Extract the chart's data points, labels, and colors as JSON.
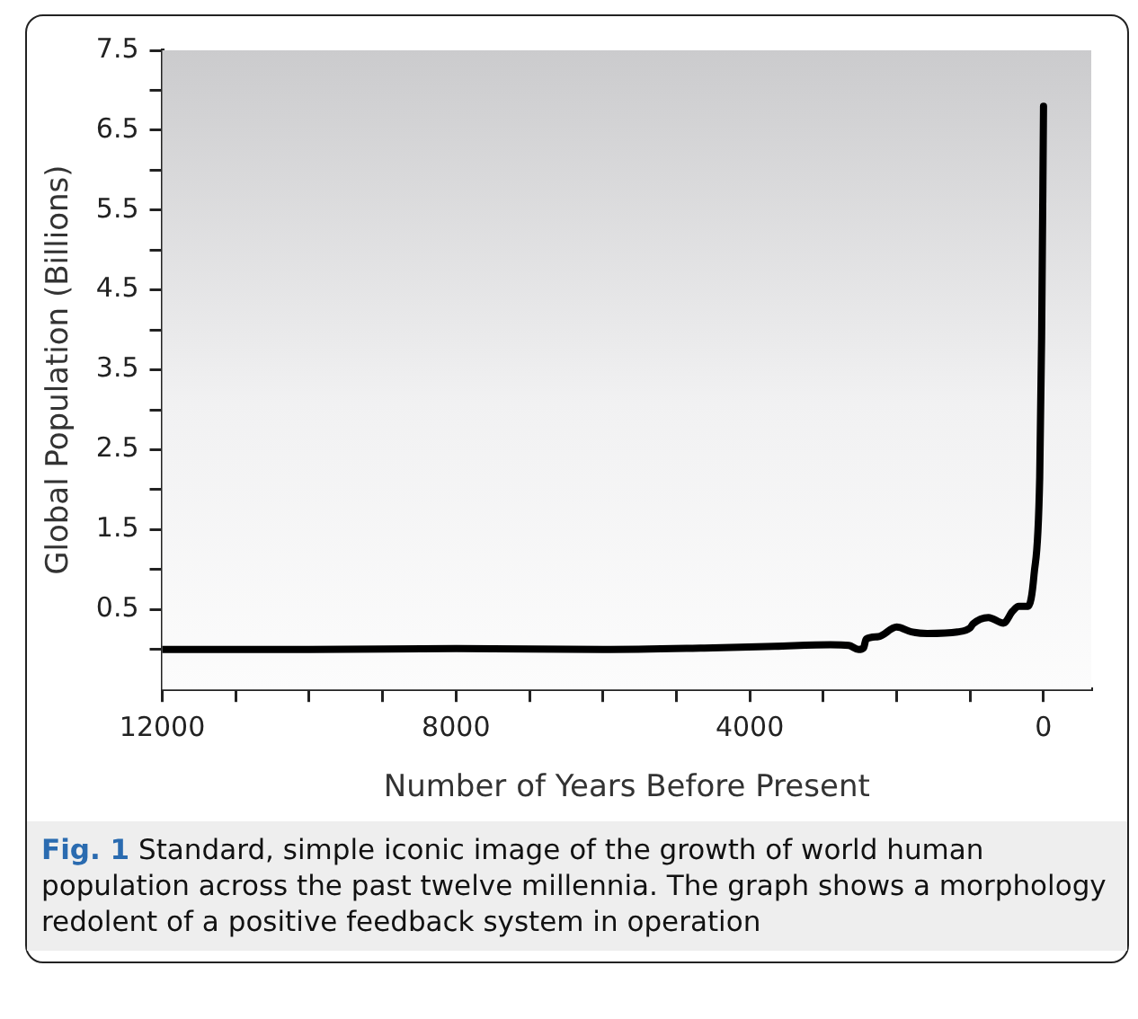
{
  "chart_data": {
    "type": "line",
    "xlabel": "Number of Years Before Present",
    "ylabel": "Global Population (Billions)",
    "x": [
      12000,
      10000,
      8000,
      6000,
      4500,
      3662,
      2900,
      2650,
      2520,
      2450,
      2416,
      2250,
      2000,
      1800,
      1584,
      1170,
      1000,
      960,
      750,
      545,
      420,
      337,
      208,
      130,
      52,
      26,
      0
    ],
    "series": [
      {
        "color": "#000000",
        "values": [
          0,
          0,
          0.01,
          0,
          0.02,
          0.04,
          0.06,
          0.05,
          0,
          0.02,
          0.13,
          0.16,
          0.28,
          0.22,
          0.2,
          0.22,
          0.27,
          0.32,
          0.4,
          0.33,
          0.48,
          0.54,
          0.54,
          0.93,
          2.15,
          3.9,
          6.8
        ]
      }
    ],
    "xlim": [
      12000,
      -650
    ],
    "ylim": [
      -0.5,
      7.5
    ],
    "xticks": [
      12000,
      {
        "value": 11000,
        "label": null
      },
      {
        "value": 10000,
        "label": null
      },
      {
        "value": 9000,
        "label": null
      },
      8000,
      {
        "value": 7000,
        "label": null
      },
      {
        "value": 6000,
        "label": null
      },
      {
        "value": 5000,
        "label": null
      },
      4000,
      {
        "value": 3000,
        "label": null
      },
      {
        "value": 2000,
        "label": null
      },
      {
        "value": 1000,
        "label": null
      },
      0
    ],
    "yticks": [
      {
        "value": 0,
        "label": null
      },
      0.5,
      {
        "value": 1,
        "label": null
      },
      1.5,
      {
        "value": 2,
        "label": null
      },
      2.5,
      {
        "value": 3,
        "label": null
      },
      3.5,
      {
        "value": 4,
        "label": null
      },
      4.5,
      {
        "value": 5,
        "label": null
      },
      5.5,
      {
        "value": 6,
        "label": null
      },
      6.5,
      {
        "value": 7,
        "label": null
      },
      7.5
    ],
    "grid": false,
    "marker": "none",
    "line_style": "solid",
    "annotations": [
      "Fig. 1 Standard, simple iconic image of the growth of world human population across the past twelve millennia. The graph shows a morphology redolent of a positive feedback system in operation"
    ]
  }
}
